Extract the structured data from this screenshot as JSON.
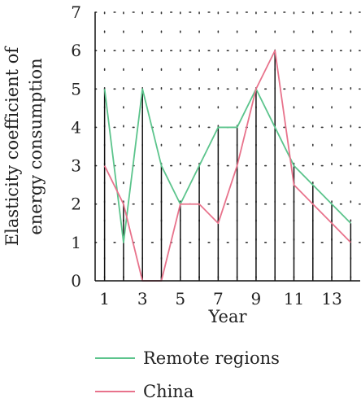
{
  "chart_data": {
    "type": "line",
    "title": "",
    "xlabel": "Year",
    "ylabel_lines": [
      "Elasticity coefficient of",
      "energy consumption"
    ],
    "xlim": [
      0.5,
      14.5
    ],
    "ylim": [
      0,
      7
    ],
    "x_ticks": [
      "1",
      "3",
      "5",
      "7",
      "9",
      "11",
      "13"
    ],
    "y_ticks": [
      "0",
      "1",
      "2",
      "3",
      "4",
      "5",
      "6",
      "7"
    ],
    "grid": "dotted",
    "legend_position": "bottom",
    "x": [
      1,
      2,
      3,
      4,
      5,
      6,
      7,
      8,
      9,
      10,
      11,
      12,
      13,
      14
    ],
    "series": [
      {
        "name": "Remote regions",
        "color": "#5cc48c",
        "values": [
          5,
          1,
          5,
          3,
          2,
          3,
          4,
          4,
          5,
          4,
          3,
          2.5,
          2,
          1.5
        ]
      },
      {
        "name": "China",
        "color": "#e8738c",
        "values": [
          3,
          2,
          0,
          0,
          2,
          2,
          1.5,
          3,
          5,
          6,
          2.5,
          2,
          1.5,
          1
        ]
      }
    ],
    "stems": [
      5,
      2,
      5,
      3,
      2,
      3,
      4,
      4,
      5,
      6,
      3,
      2.5,
      2,
      1.5
    ],
    "stem_color": "#111111"
  }
}
